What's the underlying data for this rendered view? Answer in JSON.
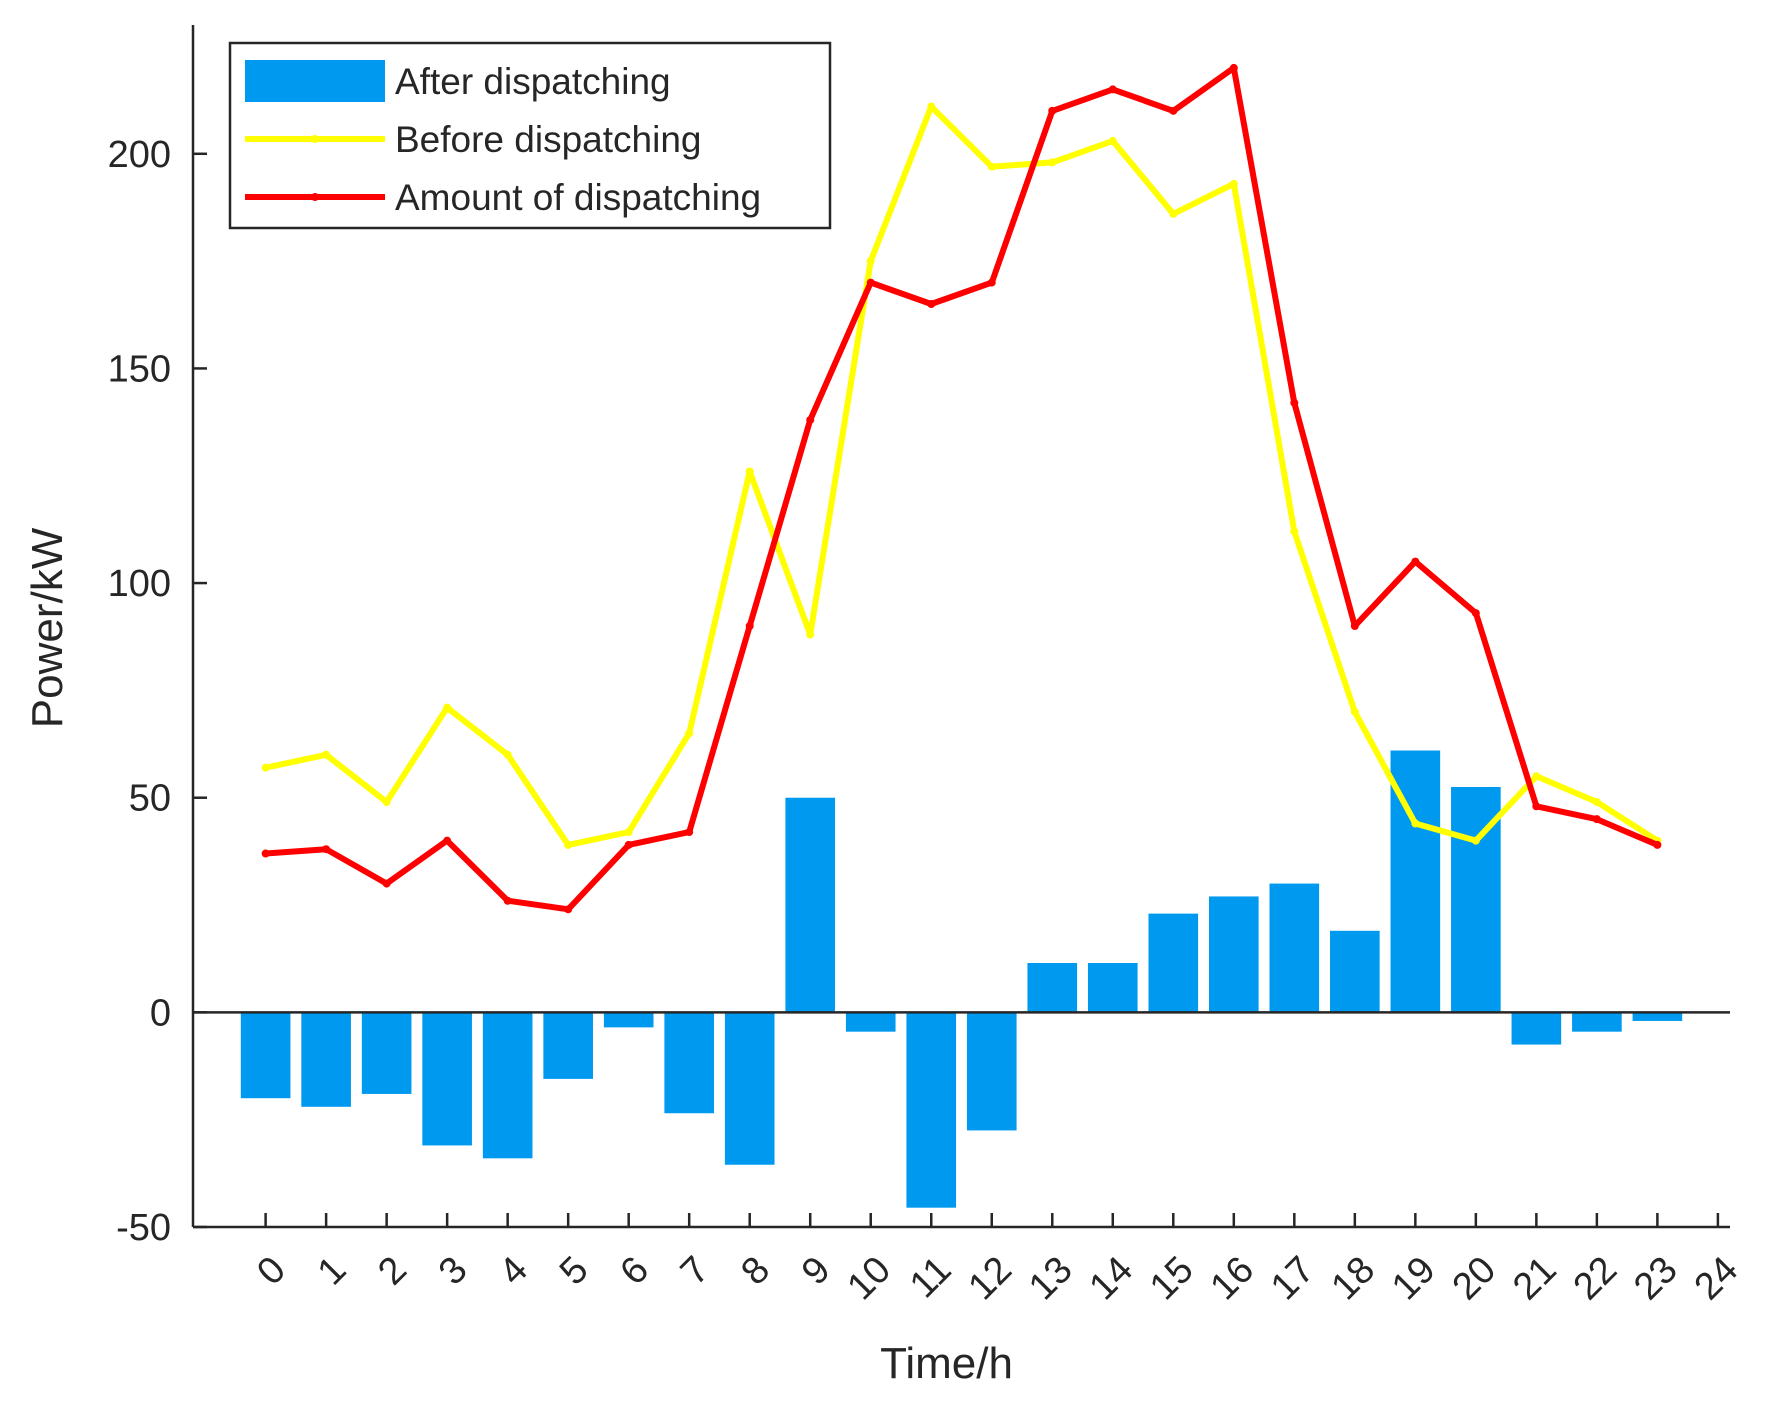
{
  "chart_data": {
    "type": "bar+line",
    "title": "",
    "xlabel": "Time/h",
    "ylabel": "Power/kW",
    "xlim": [
      -1.2,
      24.2
    ],
    "ylim": [
      -50,
      230
    ],
    "x_ticks": [
      "0",
      "1",
      "2",
      "3",
      "4",
      "5",
      "6",
      "7",
      "8",
      "9",
      "10",
      "11",
      "12",
      "13",
      "14",
      "15",
      "16",
      "17",
      "18",
      "19",
      "20",
      "21",
      "22",
      "23",
      "24"
    ],
    "y_ticks": [
      -50,
      0,
      50,
      100,
      150,
      200
    ],
    "y_tick_labels": [
      "-50",
      "0",
      "50",
      "100",
      "150",
      "200"
    ],
    "legend_position": "top-left",
    "x": [
      0,
      1,
      2,
      3,
      4,
      5,
      6,
      7,
      8,
      9,
      10,
      11,
      12,
      13,
      14,
      15,
      16,
      17,
      18,
      19,
      20,
      21,
      22,
      23
    ],
    "series": [
      {
        "name": "After dispatching",
        "kind": "bar",
        "color": "#0099f0",
        "values": [
          -20,
          -22,
          -19,
          -31,
          -34,
          -15.5,
          -3.5,
          -23.5,
          -35.5,
          50,
          -4.5,
          -45.5,
          -27.5,
          11.5,
          11.5,
          23,
          27,
          30,
          19,
          61,
          52.5,
          -7.5,
          -4.5,
          -2
        ]
      },
      {
        "name": "Before dispatching",
        "kind": "line",
        "color": "#ffff00",
        "values": [
          57,
          60,
          49,
          71,
          60,
          39,
          42,
          65,
          126,
          88,
          175,
          211,
          197,
          198,
          203,
          186,
          193,
          112,
          70,
          44,
          40,
          55,
          49,
          40
        ]
      },
      {
        "name": "Amount of dispatching",
        "kind": "line",
        "color": "#ff0000",
        "values": [
          37,
          38,
          30,
          40,
          26,
          24,
          39,
          42,
          90,
          138,
          170,
          165,
          170,
          210,
          215,
          210,
          220,
          142,
          90,
          105,
          93,
          48,
          45,
          39
        ]
      }
    ]
  }
}
